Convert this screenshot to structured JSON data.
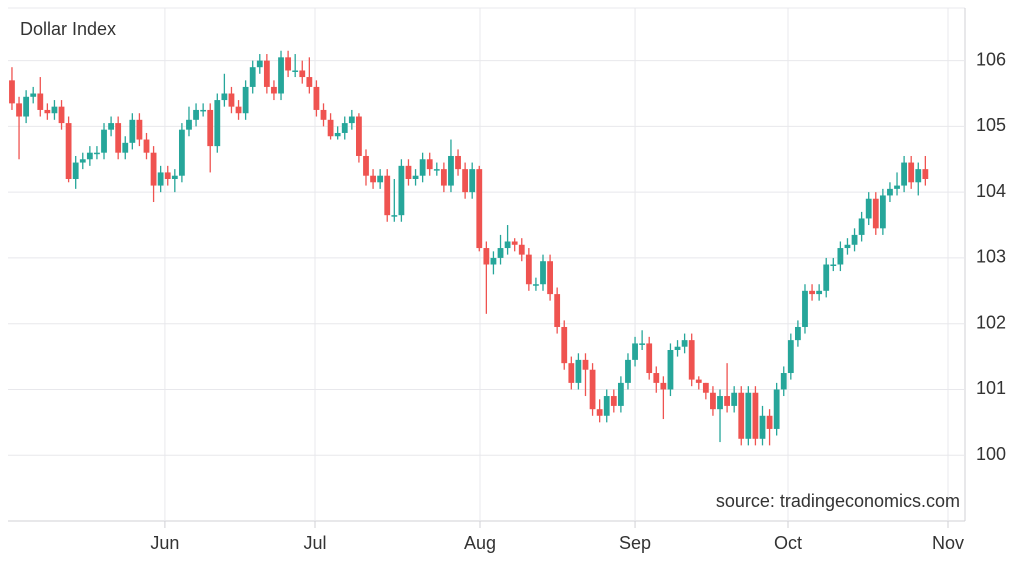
{
  "chart_data": {
    "type": "candlestick",
    "title": "Dollar Index",
    "source": "source: tradingeconomics.com",
    "up_color": "#26a69a",
    "down_color": "#ef5350",
    "grid": true,
    "ylim": [
      99,
      106.8
    ],
    "yticks": [
      100,
      101,
      102,
      103,
      104,
      105,
      106
    ],
    "xlim": [
      -0.56,
      134.6
    ],
    "xticks": [
      {
        "value": 21.6,
        "label": "Jun"
      },
      {
        "value": 42.8,
        "label": "Jul"
      },
      {
        "value": 66.1,
        "label": "Aug"
      },
      {
        "value": 88.0,
        "label": "Sep"
      },
      {
        "value": 109.6,
        "label": "Oct"
      },
      {
        "value": 132.2,
        "label": "Nov"
      }
    ],
    "open": [
      105.7,
      105.35,
      105.15,
      105.45,
      105.5,
      105.25,
      105.2,
      105.3,
      105.05,
      104.2,
      104.45,
      104.5,
      104.6,
      104.6,
      104.95,
      105.05,
      104.6,
      104.75,
      105.1,
      104.8,
      104.6,
      104.1,
      104.3,
      104.2,
      104.25,
      104.95,
      105.1,
      105.25,
      105.25,
      104.7,
      105.4,
      105.5,
      105.3,
      105.2,
      105.6,
      105.9,
      106.0,
      105.6,
      105.5,
      106.05,
      105.85,
      105.85,
      105.75,
      105.6,
      105.25,
      105.1,
      104.85,
      104.9,
      105.05,
      105.15,
      104.55,
      104.25,
      104.15,
      104.25,
      103.65,
      103.65,
      104.4,
      104.2,
      104.25,
      104.5,
      104.35,
      104.35,
      104.1,
      104.55,
      104.35,
      104.0,
      104.35,
      103.15,
      102.9,
      103.0,
      103.15,
      103.25,
      103.2,
      103.05,
      102.6,
      102.6,
      102.95,
      102.45,
      101.95,
      101.4,
      101.1,
      101.45,
      101.3,
      100.7,
      100.6,
      100.9,
      100.75,
      101.1,
      101.45,
      101.7,
      101.7,
      101.25,
      101.1,
      101.0,
      101.6,
      101.65,
      101.75,
      101.15,
      101.1,
      100.95,
      100.7,
      100.9,
      100.75,
      100.95,
      100.25,
      100.95,
      100.25,
      100.6,
      100.4,
      101.0,
      101.25,
      101.75,
      101.95,
      102.5,
      102.45,
      102.5,
      102.9,
      102.9,
      103.15,
      103.2,
      103.35,
      103.6,
      103.9,
      103.45,
      103.95,
      104.05,
      104.1,
      104.45,
      104.15,
      104.35
    ],
    "high": [
      105.9,
      105.45,
      105.55,
      105.6,
      105.75,
      105.35,
      105.4,
      105.4,
      105.15,
      104.55,
      104.6,
      104.7,
      104.7,
      105.05,
      105.15,
      105.15,
      104.85,
      105.2,
      105.2,
      104.9,
      104.7,
      104.4,
      104.4,
      104.35,
      105.05,
      105.3,
      105.35,
      105.35,
      105.35,
      105.5,
      105.8,
      105.6,
      105.4,
      105.7,
      106.0,
      106.1,
      106.1,
      105.7,
      106.15,
      106.15,
      106.1,
      106.0,
      106.05,
      105.7,
      105.35,
      105.2,
      105.0,
      105.15,
      105.25,
      105.2,
      104.65,
      104.35,
      104.35,
      104.35,
      104.2,
      104.5,
      104.5,
      104.35,
      104.6,
      104.6,
      104.45,
      104.45,
      104.8,
      104.65,
      104.45,
      104.45,
      104.4,
      103.25,
      103.1,
      103.35,
      103.5,
      103.3,
      103.3,
      103.15,
      102.7,
      103.05,
      103.05,
      102.55,
      102.05,
      101.5,
      101.55,
      101.55,
      101.4,
      100.85,
      101.0,
      101.0,
      101.2,
      101.55,
      101.8,
      101.9,
      101.8,
      101.35,
      101.2,
      101.7,
      101.75,
      101.85,
      101.85,
      101.2,
      101.1,
      101.05,
      101.0,
      101.4,
      101.05,
      101.05,
      101.05,
      101.05,
      100.75,
      100.7,
      101.1,
      101.35,
      101.85,
      102.05,
      102.6,
      102.6,
      102.6,
      103.0,
      103.0,
      103.25,
      103.3,
      103.45,
      103.7,
      104.0,
      104.0,
      104.05,
      104.15,
      104.3,
      104.55,
      104.55,
      104.45,
      104.55
    ],
    "low": [
      105.25,
      104.5,
      105.05,
      105.35,
      105.15,
      105.1,
      105.1,
      104.95,
      104.15,
      104.05,
      104.35,
      104.4,
      104.5,
      104.5,
      104.85,
      104.5,
      104.5,
      104.65,
      104.7,
      104.5,
      103.85,
      104.0,
      104.1,
      104.0,
      104.15,
      104.85,
      105.0,
      105.15,
      104.3,
      104.6,
      105.3,
      105.2,
      105.1,
      105.1,
      105.5,
      105.8,
      105.5,
      105.4,
      105.4,
      105.75,
      105.75,
      105.65,
      105.5,
      105.15,
      105.0,
      104.8,
      104.8,
      104.8,
      104.95,
      104.45,
      104.1,
      104.05,
      104.05,
      103.55,
      103.55,
      103.55,
      104.1,
      104.1,
      104.15,
      104.25,
      104.25,
      104.0,
      104.0,
      104.25,
      103.9,
      103.9,
      103.1,
      102.15,
      102.75,
      102.9,
      103.05,
      103.1,
      102.95,
      102.5,
      102.5,
      102.5,
      102.35,
      101.85,
      101.3,
      101.0,
      101.0,
      100.9,
      100.6,
      100.5,
      100.5,
      100.65,
      100.65,
      101.0,
      101.35,
      101.6,
      101.15,
      100.95,
      100.55,
      100.9,
      101.5,
      101.55,
      101.05,
      101.0,
      100.85,
      100.6,
      100.2,
      100.65,
      100.65,
      100.15,
      100.15,
      100.15,
      100.15,
      100.15,
      100.3,
      100.9,
      101.15,
      101.65,
      101.85,
      102.35,
      102.35,
      102.4,
      102.8,
      102.8,
      103.05,
      103.1,
      103.25,
      103.5,
      103.35,
      103.35,
      103.85,
      103.95,
      104.0,
      104.05,
      103.95,
      104.1
    ],
    "close": [
      105.35,
      105.15,
      105.45,
      105.5,
      105.25,
      105.2,
      105.3,
      105.05,
      104.2,
      104.45,
      104.5,
      104.6,
      104.6,
      104.95,
      105.05,
      104.6,
      104.75,
      105.1,
      104.8,
      104.6,
      104.1,
      104.3,
      104.2,
      104.25,
      104.95,
      105.1,
      105.25,
      105.25,
      104.7,
      105.4,
      105.5,
      105.3,
      105.2,
      105.6,
      105.9,
      106.0,
      105.6,
      105.5,
      106.05,
      105.85,
      105.85,
      105.75,
      105.6,
      105.25,
      105.1,
      104.85,
      104.9,
      105.05,
      105.15,
      104.55,
      104.25,
      104.15,
      104.25,
      103.65,
      103.65,
      104.4,
      104.2,
      104.25,
      104.5,
      104.35,
      104.35,
      104.1,
      104.55,
      104.35,
      104.0,
      104.35,
      103.15,
      102.9,
      103.0,
      103.15,
      103.25,
      103.2,
      103.05,
      102.6,
      102.6,
      102.95,
      102.45,
      101.95,
      101.4,
      101.1,
      101.45,
      101.3,
      100.7,
      100.6,
      100.9,
      100.75,
      101.1,
      101.45,
      101.7,
      101.7,
      101.25,
      101.1,
      101.0,
      101.6,
      101.65,
      101.75,
      101.15,
      101.1,
      100.95,
      100.7,
      100.9,
      100.75,
      100.95,
      100.25,
      100.95,
      100.25,
      100.6,
      100.4,
      101.0,
      101.25,
      101.75,
      101.95,
      102.5,
      102.45,
      102.5,
      102.9,
      102.9,
      103.15,
      103.2,
      103.35,
      103.6,
      103.9,
      103.45,
      103.95,
      104.05,
      104.1,
      104.45,
      104.15,
      104.35,
      104.2
    ]
  }
}
